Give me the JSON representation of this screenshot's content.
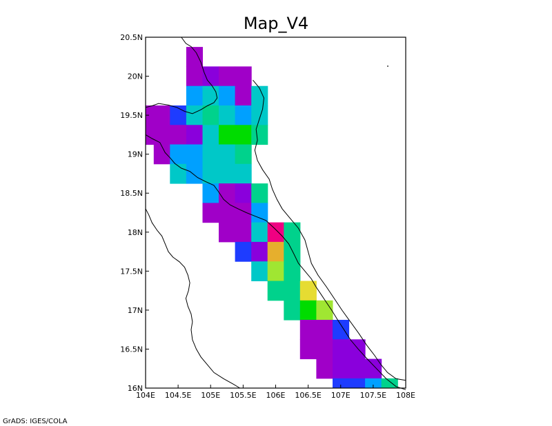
{
  "title": "Map_V4",
  "credit": "GrADS: IGES/COLA",
  "chart_data": {
    "type": "heatmap",
    "title": "Map_V4",
    "xlim": [
      104,
      108
    ],
    "ylim": [
      16,
      20.5
    ],
    "x_ticks": [
      {
        "value": 104,
        "label": "104E"
      },
      {
        "value": 104.5,
        "label": "104.5E"
      },
      {
        "value": 105,
        "label": "105E"
      },
      {
        "value": 105.5,
        "label": "105.5E"
      },
      {
        "value": 106,
        "label": "106E"
      },
      {
        "value": 106.5,
        "label": "106.5E"
      },
      {
        "value": 107,
        "label": "107E"
      },
      {
        "value": 107.5,
        "label": "107.5E"
      },
      {
        "value": 108,
        "label": "108E"
      }
    ],
    "y_ticks": [
      {
        "value": 16,
        "label": "16N"
      },
      {
        "value": 16.5,
        "label": "16.5N"
      },
      {
        "value": 17,
        "label": "17N"
      },
      {
        "value": 17.5,
        "label": "17.5N"
      },
      {
        "value": 18,
        "label": "18N"
      },
      {
        "value": 18.5,
        "label": "18.5N"
      },
      {
        "value": 19,
        "label": "19N"
      },
      {
        "value": 19.5,
        "label": "19.5N"
      },
      {
        "value": 20,
        "label": "20N"
      },
      {
        "value": 20.5,
        "label": "20.5N"
      }
    ],
    "cell_size": 0.25,
    "colors": {
      "purple": "#8a00dc",
      "violet": "#a000c8",
      "blue": "#1e3cff",
      "azure": "#00a0ff",
      "cyan": "#00c8c8",
      "green": "#00d28c",
      "lime": "#00dc00",
      "yellowgreen": "#a0e632",
      "yellow": "#e6dc32",
      "orange": "#e6af2d",
      "magenta": "#f00082"
    },
    "cells": [
      {
        "lon": 104.75,
        "lat": 20.25,
        "c": "violet"
      },
      {
        "lon": 104.75,
        "lat": 20.0,
        "c": "violet"
      },
      {
        "lon": 105.0,
        "lat": 20.0,
        "c": "purple"
      },
      {
        "lon": 105.25,
        "lat": 20.0,
        "c": "violet"
      },
      {
        "lon": 105.5,
        "lat": 20.0,
        "c": "violet"
      },
      {
        "lon": 104.75,
        "lat": 19.75,
        "c": "azure"
      },
      {
        "lon": 105.0,
        "lat": 19.75,
        "c": "cyan"
      },
      {
        "lon": 105.25,
        "lat": 19.75,
        "c": "azure"
      },
      {
        "lon": 105.5,
        "lat": 19.75,
        "c": "violet"
      },
      {
        "lon": 105.75,
        "lat": 19.75,
        "c": "cyan"
      },
      {
        "lon": 104.0,
        "lat": 19.5,
        "c": "violet"
      },
      {
        "lon": 104.25,
        "lat": 19.5,
        "c": "violet"
      },
      {
        "lon": 104.5,
        "lat": 19.5,
        "c": "blue"
      },
      {
        "lon": 104.75,
        "lat": 19.5,
        "c": "cyan"
      },
      {
        "lon": 105.0,
        "lat": 19.5,
        "c": "green"
      },
      {
        "lon": 105.25,
        "lat": 19.5,
        "c": "cyan"
      },
      {
        "lon": 105.5,
        "lat": 19.5,
        "c": "azure"
      },
      {
        "lon": 105.75,
        "lat": 19.5,
        "c": "cyan"
      },
      {
        "lon": 104.0,
        "lat": 19.25,
        "c": "violet"
      },
      {
        "lon": 104.25,
        "lat": 19.25,
        "c": "violet"
      },
      {
        "lon": 104.5,
        "lat": 19.25,
        "c": "violet"
      },
      {
        "lon": 104.75,
        "lat": 19.25,
        "c": "purple"
      },
      {
        "lon": 105.0,
        "lat": 19.25,
        "c": "cyan"
      },
      {
        "lon": 105.25,
        "lat": 19.25,
        "c": "lime"
      },
      {
        "lon": 105.5,
        "lat": 19.25,
        "c": "lime"
      },
      {
        "lon": 105.75,
        "lat": 19.25,
        "c": "green"
      },
      {
        "lon": 104.25,
        "lat": 19.0,
        "c": "violet"
      },
      {
        "lon": 104.5,
        "lat": 19.0,
        "c": "azure"
      },
      {
        "lon": 104.75,
        "lat": 19.0,
        "c": "azure"
      },
      {
        "lon": 105.0,
        "lat": 19.0,
        "c": "cyan"
      },
      {
        "lon": 105.25,
        "lat": 19.0,
        "c": "cyan"
      },
      {
        "lon": 105.5,
        "lat": 19.0,
        "c": "green"
      },
      {
        "lon": 104.5,
        "lat": 18.75,
        "c": "cyan"
      },
      {
        "lon": 104.75,
        "lat": 18.75,
        "c": "azure"
      },
      {
        "lon": 105.0,
        "lat": 18.75,
        "c": "cyan"
      },
      {
        "lon": 105.25,
        "lat": 18.75,
        "c": "cyan"
      },
      {
        "lon": 105.5,
        "lat": 18.75,
        "c": "cyan"
      },
      {
        "lon": 105.0,
        "lat": 18.5,
        "c": "azure"
      },
      {
        "lon": 105.25,
        "lat": 18.5,
        "c": "violet"
      },
      {
        "lon": 105.5,
        "lat": 18.5,
        "c": "purple"
      },
      {
        "lon": 105.75,
        "lat": 18.5,
        "c": "green"
      },
      {
        "lon": 105.0,
        "lat": 18.25,
        "c": "violet"
      },
      {
        "lon": 105.25,
        "lat": 18.25,
        "c": "violet"
      },
      {
        "lon": 105.5,
        "lat": 18.25,
        "c": "violet"
      },
      {
        "lon": 105.75,
        "lat": 18.25,
        "c": "azure"
      },
      {
        "lon": 105.25,
        "lat": 18.0,
        "c": "violet"
      },
      {
        "lon": 105.5,
        "lat": 18.0,
        "c": "violet"
      },
      {
        "lon": 105.75,
        "lat": 18.0,
        "c": "cyan"
      },
      {
        "lon": 106.0,
        "lat": 18.0,
        "c": "magenta"
      },
      {
        "lon": 106.25,
        "lat": 18.0,
        "c": "green"
      },
      {
        "lon": 105.5,
        "lat": 17.75,
        "c": "blue"
      },
      {
        "lon": 105.75,
        "lat": 17.75,
        "c": "purple"
      },
      {
        "lon": 106.0,
        "lat": 17.75,
        "c": "orange"
      },
      {
        "lon": 106.25,
        "lat": 17.75,
        "c": "green"
      },
      {
        "lon": 105.75,
        "lat": 17.5,
        "c": "cyan"
      },
      {
        "lon": 106.0,
        "lat": 17.5,
        "c": "yellowgreen"
      },
      {
        "lon": 106.25,
        "lat": 17.5,
        "c": "green"
      },
      {
        "lon": 106.0,
        "lat": 17.25,
        "c": "green"
      },
      {
        "lon": 106.25,
        "lat": 17.25,
        "c": "green"
      },
      {
        "lon": 106.5,
        "lat": 17.25,
        "c": "yellow"
      },
      {
        "lon": 106.25,
        "lat": 17.0,
        "c": "green"
      },
      {
        "lon": 106.5,
        "lat": 17.0,
        "c": "lime"
      },
      {
        "lon": 106.75,
        "lat": 17.0,
        "c": "yellowgreen"
      },
      {
        "lon": 106.5,
        "lat": 16.75,
        "c": "violet"
      },
      {
        "lon": 106.75,
        "lat": 16.75,
        "c": "violet"
      },
      {
        "lon": 107.0,
        "lat": 16.75,
        "c": "blue"
      },
      {
        "lon": 106.5,
        "lat": 16.5,
        "c": "violet"
      },
      {
        "lon": 106.75,
        "lat": 16.5,
        "c": "violet"
      },
      {
        "lon": 107.0,
        "lat": 16.5,
        "c": "purple"
      },
      {
        "lon": 107.25,
        "lat": 16.5,
        "c": "purple"
      },
      {
        "lon": 106.75,
        "lat": 16.25,
        "c": "violet"
      },
      {
        "lon": 107.0,
        "lat": 16.25,
        "c": "purple"
      },
      {
        "lon": 107.25,
        "lat": 16.25,
        "c": "purple"
      },
      {
        "lon": 107.5,
        "lat": 16.25,
        "c": "purple"
      },
      {
        "lon": 107.0,
        "lat": 16.0,
        "c": "blue"
      },
      {
        "lon": 107.25,
        "lat": 16.0,
        "c": "blue"
      },
      {
        "lon": 107.5,
        "lat": 16.0,
        "c": "azure"
      },
      {
        "lon": 107.75,
        "lat": 16.0,
        "c": "green"
      }
    ],
    "coastline": [
      [
        104.55,
        20.5
      ],
      [
        104.62,
        20.42
      ],
      [
        104.7,
        20.38
      ],
      [
        104.78,
        20.3
      ],
      [
        104.85,
        20.18
      ],
      [
        104.9,
        20.05
      ],
      [
        104.95,
        19.95
      ],
      [
        105.02,
        19.88
      ],
      [
        105.08,
        19.8
      ],
      [
        105.1,
        19.72
      ],
      [
        105.05,
        19.66
      ],
      [
        104.95,
        19.62
      ],
      [
        104.85,
        19.57
      ],
      [
        104.72,
        19.52
      ],
      [
        104.6,
        19.55
      ],
      [
        104.48,
        19.6
      ],
      [
        104.35,
        19.63
      ],
      [
        104.2,
        19.65
      ],
      [
        104.1,
        19.62
      ],
      [
        104.0,
        19.6
      ]
    ],
    "coastline2": [
      [
        104.0,
        19.25
      ],
      [
        104.1,
        19.2
      ],
      [
        104.22,
        19.15
      ],
      [
        104.3,
        19.02
      ],
      [
        104.38,
        18.95
      ],
      [
        104.45,
        18.88
      ],
      [
        104.55,
        18.82
      ],
      [
        104.68,
        18.78
      ],
      [
        104.8,
        18.7
      ],
      [
        104.92,
        18.65
      ],
      [
        105.05,
        18.6
      ],
      [
        105.12,
        18.52
      ],
      [
        105.2,
        18.42
      ],
      [
        105.3,
        18.35
      ],
      [
        105.42,
        18.3
      ],
      [
        105.55,
        18.25
      ],
      [
        105.7,
        18.2
      ],
      [
        105.85,
        18.15
      ],
      [
        105.98,
        18.05
      ],
      [
        106.1,
        17.95
      ],
      [
        106.2,
        17.85
      ],
      [
        106.28,
        17.72
      ],
      [
        106.35,
        17.6
      ],
      [
        106.45,
        17.5
      ],
      [
        106.55,
        17.4
      ],
      [
        106.62,
        17.3
      ],
      [
        106.7,
        17.2
      ],
      [
        106.78,
        17.1
      ],
      [
        106.86,
        17.0
      ],
      [
        106.95,
        16.88
      ],
      [
        107.05,
        16.75
      ],
      [
        107.15,
        16.62
      ],
      [
        107.27,
        16.5
      ],
      [
        107.4,
        16.38
      ],
      [
        107.55,
        16.25
      ],
      [
        107.7,
        16.12
      ],
      [
        107.85,
        16.02
      ],
      [
        108.0,
        15.98
      ]
    ],
    "coastline3": [
      [
        105.65,
        19.95
      ],
      [
        105.75,
        19.85
      ],
      [
        105.82,
        19.72
      ],
      [
        105.8,
        19.58
      ],
      [
        105.75,
        19.45
      ],
      [
        105.7,
        19.32
      ],
      [
        105.72,
        19.18
      ],
      [
        105.68,
        19.05
      ],
      [
        105.72,
        18.92
      ],
      [
        105.8,
        18.8
      ],
      [
        105.9,
        18.68
      ],
      [
        105.95,
        18.55
      ],
      [
        106.02,
        18.42
      ],
      [
        106.1,
        18.3
      ],
      [
        106.22,
        18.18
      ],
      [
        106.35,
        18.05
      ],
      [
        106.45,
        17.9
      ],
      [
        106.5,
        17.75
      ],
      [
        106.55,
        17.6
      ],
      [
        106.65,
        17.45
      ],
      [
        106.78,
        17.3
      ],
      [
        106.9,
        17.15
      ],
      [
        107.02,
        17.0
      ],
      [
        107.15,
        16.85
      ],
      [
        107.28,
        16.7
      ],
      [
        107.4,
        16.55
      ],
      [
        107.52,
        16.42
      ],
      [
        107.62,
        16.3
      ],
      [
        107.72,
        16.2
      ],
      [
        107.85,
        16.12
      ],
      [
        108.0,
        16.1
      ]
    ],
    "border": [
      [
        104.0,
        18.3
      ],
      [
        104.05,
        18.22
      ],
      [
        104.1,
        18.12
      ],
      [
        104.18,
        18.02
      ],
      [
        104.25,
        17.95
      ],
      [
        104.3,
        17.85
      ],
      [
        104.35,
        17.75
      ],
      [
        104.42,
        17.68
      ],
      [
        104.52,
        17.62
      ],
      [
        104.6,
        17.55
      ],
      [
        104.65,
        17.45
      ],
      [
        104.68,
        17.35
      ],
      [
        104.66,
        17.25
      ],
      [
        104.62,
        17.15
      ],
      [
        104.65,
        17.05
      ],
      [
        104.7,
        16.95
      ],
      [
        104.72,
        16.85
      ],
      [
        104.7,
        16.75
      ],
      [
        104.72,
        16.62
      ],
      [
        104.78,
        16.5
      ],
      [
        104.85,
        16.4
      ],
      [
        104.95,
        16.3
      ],
      [
        105.05,
        16.2
      ],
      [
        105.2,
        16.12
      ],
      [
        105.35,
        16.05
      ],
      [
        105.45,
        16.0
      ]
    ]
  }
}
